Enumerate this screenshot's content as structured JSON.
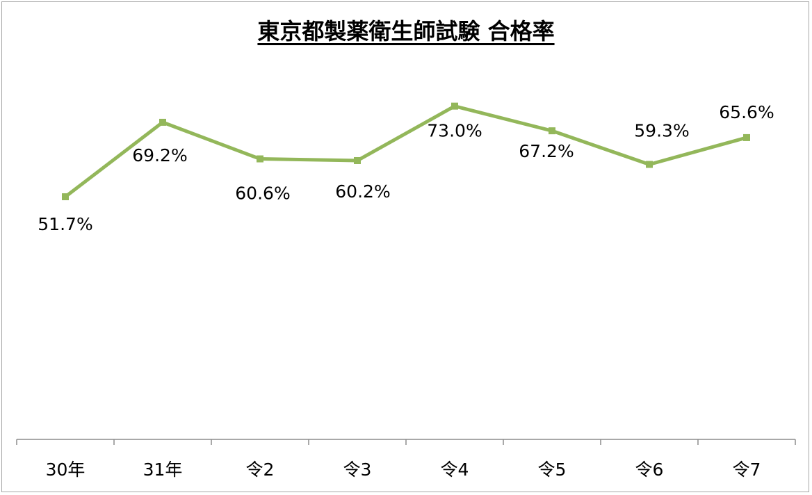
{
  "chart_data": {
    "type": "line",
    "title": "東京都製薬衛生師試験 合格率",
    "categories": [
      "30年",
      "31年",
      "令2",
      "令3",
      "令4",
      "令5",
      "令6",
      "令7"
    ],
    "series": [
      {
        "values": [
          51.7,
          69.2,
          60.6,
          60.2,
          73.0,
          67.2,
          59.3,
          65.6
        ],
        "data_labels": [
          "51.7%",
          "69.2%",
          "60.6%",
          "60.2%",
          "73.0%",
          "67.2%",
          "59.3%",
          "65.6%"
        ],
        "color": "#93b75a"
      }
    ],
    "xlabel": "",
    "ylabel": "",
    "grid": false,
    "legend": "none"
  }
}
